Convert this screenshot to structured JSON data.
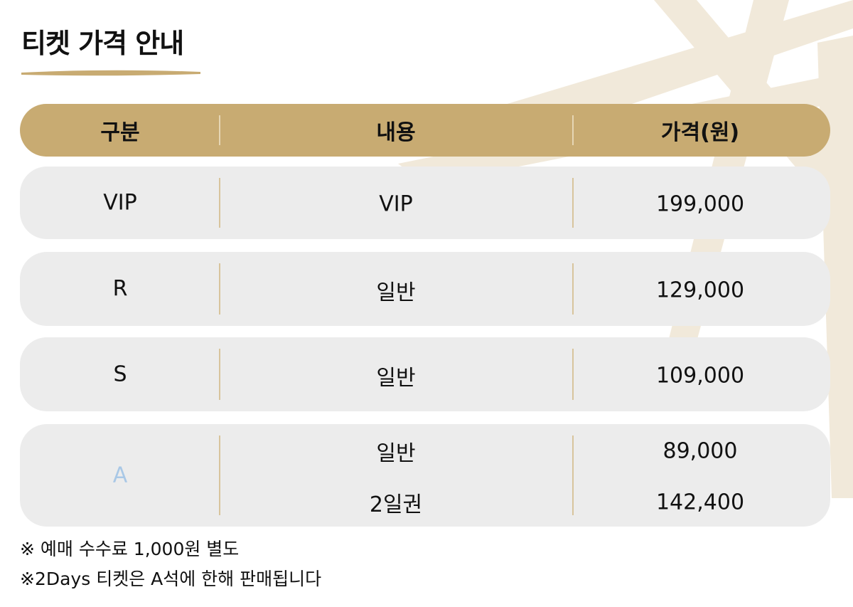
{
  "title": "티켓 가격 안내",
  "table": {
    "header": [
      "구분",
      "내용",
      "가격(원)"
    ],
    "rows": [
      {
        "grade": "VIP",
        "items": [
          [
            "VIP",
            "199,000"
          ]
        ]
      },
      {
        "grade": "R",
        "items": [
          [
            "일반",
            "129,000"
          ]
        ]
      },
      {
        "grade": "S",
        "items": [
          [
            "일반",
            "109,000"
          ]
        ]
      },
      {
        "grade": "A",
        "items": [
          [
            "일반",
            "89,000"
          ],
          [
            "2일권",
            "142,400"
          ]
        ]
      }
    ]
  },
  "notes": [
    "※ 예매 수수료 1,000원 별도",
    "※2Days 티켓은 A석에 한해 판매됩니다"
  ]
}
